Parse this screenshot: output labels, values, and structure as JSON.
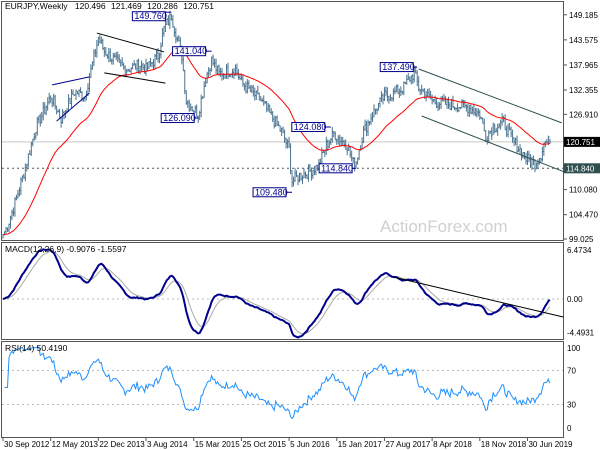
{
  "chart_data": [
    {
      "type": "ohlc",
      "symbol": "EURJPY",
      "timeframe": "Weekly",
      "header": "EURJPY,Weekly",
      "last_ohlc": {
        "open": "120.496",
        "high": "121.469",
        "low": "120.286",
        "close": "120.751"
      },
      "ylim": [
        99.025,
        152.0
      ],
      "y_ticks": [
        "149.185",
        "143.575",
        "137.965",
        "132.355",
        "126.910",
        "110.080",
        "104.470",
        "99.025"
      ],
      "y_tick_values": [
        149.185,
        143.575,
        137.965,
        132.355,
        126.91,
        110.08,
        104.47,
        99.025
      ],
      "current_price": {
        "value": 120.751,
        "label": "120.751",
        "bg": "#000000"
      },
      "support_level": {
        "value": 114.84,
        "label": "114.840",
        "bg": "#2f4f4f"
      },
      "x_ticks": [
        "30 Sep 2012",
        "12 May 2013",
        "22 Dec 2013",
        "3 Aug 2014",
        "15 Mar 2015",
        "25 Oct 2015",
        "5 Jun 2016",
        "15 Jan 2017",
        "27 Aug 2017",
        "8 Apr 2018",
        "18 Nov 2018",
        "30 Jun 2019"
      ],
      "x_tick_dates": [
        "2012-09-30",
        "2013-05-12",
        "2013-12-22",
        "2014-08-03",
        "2015-03-15",
        "2015-10-25",
        "2016-06-05",
        "2017-01-15",
        "2017-08-27",
        "2018-04-08",
        "2018-11-18",
        "2019-06-30"
      ],
      "price_path": [
        [
          "2012-09-30",
          100
        ],
        [
          "2012-10-21",
          102
        ],
        [
          "2012-11-25",
          107
        ],
        [
          "2013-01-13",
          115
        ],
        [
          "2013-03-03",
          124
        ],
        [
          "2013-04-14",
          128
        ],
        [
          "2013-05-12",
          131
        ],
        [
          "2013-06-30",
          126
        ],
        [
          "2013-09-01",
          132
        ],
        [
          "2013-10-20",
          131
        ],
        [
          "2013-12-22",
          144
        ],
        [
          "2014-01-19",
          141
        ],
        [
          "2014-03-09",
          139
        ],
        [
          "2014-04-27",
          137
        ],
        [
          "2014-07-06",
          138
        ],
        [
          "2014-08-03",
          137
        ],
        [
          "2014-09-28",
          140
        ],
        [
          "2014-10-26",
          146
        ],
        [
          "2014-11-30",
          149
        ],
        [
          "2014-12-21",
          145
        ],
        [
          "2015-01-18",
          140
        ],
        [
          "2015-02-08",
          130
        ],
        [
          "2015-03-15",
          128
        ],
        [
          "2015-04-05",
          127
        ],
        [
          "2015-05-10",
          135
        ],
        [
          "2015-06-07",
          139
        ],
        [
          "2015-07-12",
          136
        ],
        [
          "2015-09-27",
          137
        ],
        [
          "2015-10-25",
          134
        ],
        [
          "2016-01-24",
          130
        ],
        [
          "2016-03-06",
          127
        ],
        [
          "2016-05-01",
          123
        ],
        [
          "2016-06-05",
          119
        ],
        [
          "2016-06-19",
          112
        ],
        [
          "2016-07-17",
          113
        ],
        [
          "2016-09-04",
          114
        ],
        [
          "2016-10-23",
          115.5
        ],
        [
          "2016-11-27",
          120
        ],
        [
          "2017-01-01",
          122.5
        ],
        [
          "2017-01-15",
          122
        ],
        [
          "2017-03-05",
          120
        ],
        [
          "2017-04-02",
          116
        ],
        [
          "2017-04-16",
          116.5
        ],
        [
          "2017-05-21",
          123
        ],
        [
          "2017-07-02",
          127
        ],
        [
          "2017-08-27",
          131
        ],
        [
          "2017-10-08",
          131.5
        ],
        [
          "2017-11-26",
          133
        ],
        [
          "2017-12-24",
          135
        ],
        [
          "2018-01-14",
          136
        ],
        [
          "2018-02-04",
          133
        ],
        [
          "2018-04-08",
          130
        ],
        [
          "2018-05-06",
          129.5
        ],
        [
          "2018-07-15",
          129
        ],
        [
          "2018-09-23",
          128.5
        ],
        [
          "2018-11-18",
          127
        ],
        [
          "2018-12-16",
          122
        ],
        [
          "2019-01-20",
          124
        ],
        [
          "2019-03-10",
          125
        ],
        [
          "2019-04-21",
          121
        ],
        [
          "2019-05-26",
          119
        ],
        [
          "2019-06-23",
          117
        ],
        [
          "2019-08-04",
          116
        ],
        [
          "2019-09-01",
          118
        ],
        [
          "2019-09-15",
          120.5
        ],
        [
          "2019-10-13",
          120.751
        ]
      ],
      "moving_average_color": "#ff0000",
      "bar_color": "#4a7390",
      "price_labels": [
        {
          "text": "149.760",
          "date": "2014-11-30",
          "price": 149.76
        },
        {
          "text": "141.040",
          "date": "2015-06-07",
          "price": 141.04
        },
        {
          "text": "126.090",
          "date": "2015-04-05",
          "price": 126.09
        },
        {
          "text": "124.080",
          "date": "2016-12-18",
          "price": 124.08
        },
        {
          "text": "114.840",
          "date": "2017-04-16",
          "price": 114.84
        },
        {
          "text": "109.480",
          "date": "2016-06-19",
          "price": 109.48
        },
        {
          "text": "137.490",
          "date": "2018-01-28",
          "price": 137.49
        }
      ],
      "trendlines": [
        {
          "color": "#2f4f4f",
          "points": [
            [
              "2018-02-04",
              137.06
            ],
            [
              "2019-12-08",
              125.0
            ]
          ]
        },
        {
          "color": "#2f4f4f",
          "points": [
            [
              "2018-02-18",
              126.54
            ],
            [
              "2019-12-22",
              114.0
            ]
          ]
        },
        {
          "color": "#000000",
          "points": [
            [
              "2013-12-15",
              145.1
            ],
            [
              "2014-10-26",
              140.9
            ]
          ]
        },
        {
          "color": "#000000",
          "points": [
            [
              "2014-01-19",
              136.2
            ],
            [
              "2014-11-02",
              133.9
            ]
          ]
        },
        {
          "color": "#00008b",
          "points": [
            [
              "2013-05-19",
              133.5
            ],
            [
              "2013-11-10",
              135.3
            ]
          ]
        },
        {
          "color": "#00008b",
          "points": [
            [
              "2013-06-09",
              125.4
            ],
            [
              "2013-11-10",
              131.7
            ]
          ]
        }
      ],
      "watermark": "ActionForex.com"
    },
    {
      "type": "line",
      "indicator": "MACD",
      "header": "MACD(12,26,9) -0.9076 -1.5597",
      "y_ticks": [
        "6.4734",
        "0.00",
        "-4.4931"
      ],
      "y_tick_values": [
        6.4734,
        0,
        -4.4931
      ],
      "macd_color": "#00008b",
      "signal_color": "#a9a9a9",
      "trendline": [
        [
          "2017-10-08",
          2.63
        ],
        [
          "2019-12-15",
          -2.16
        ]
      ]
    },
    {
      "type": "line",
      "indicator": "RSI",
      "header": "RSI(14) 50.4190",
      "y_ticks": [
        "100",
        "70",
        "30",
        "0"
      ],
      "y_tick_values": [
        100,
        70,
        30,
        0
      ],
      "line_color": "#1e90ff"
    }
  ]
}
